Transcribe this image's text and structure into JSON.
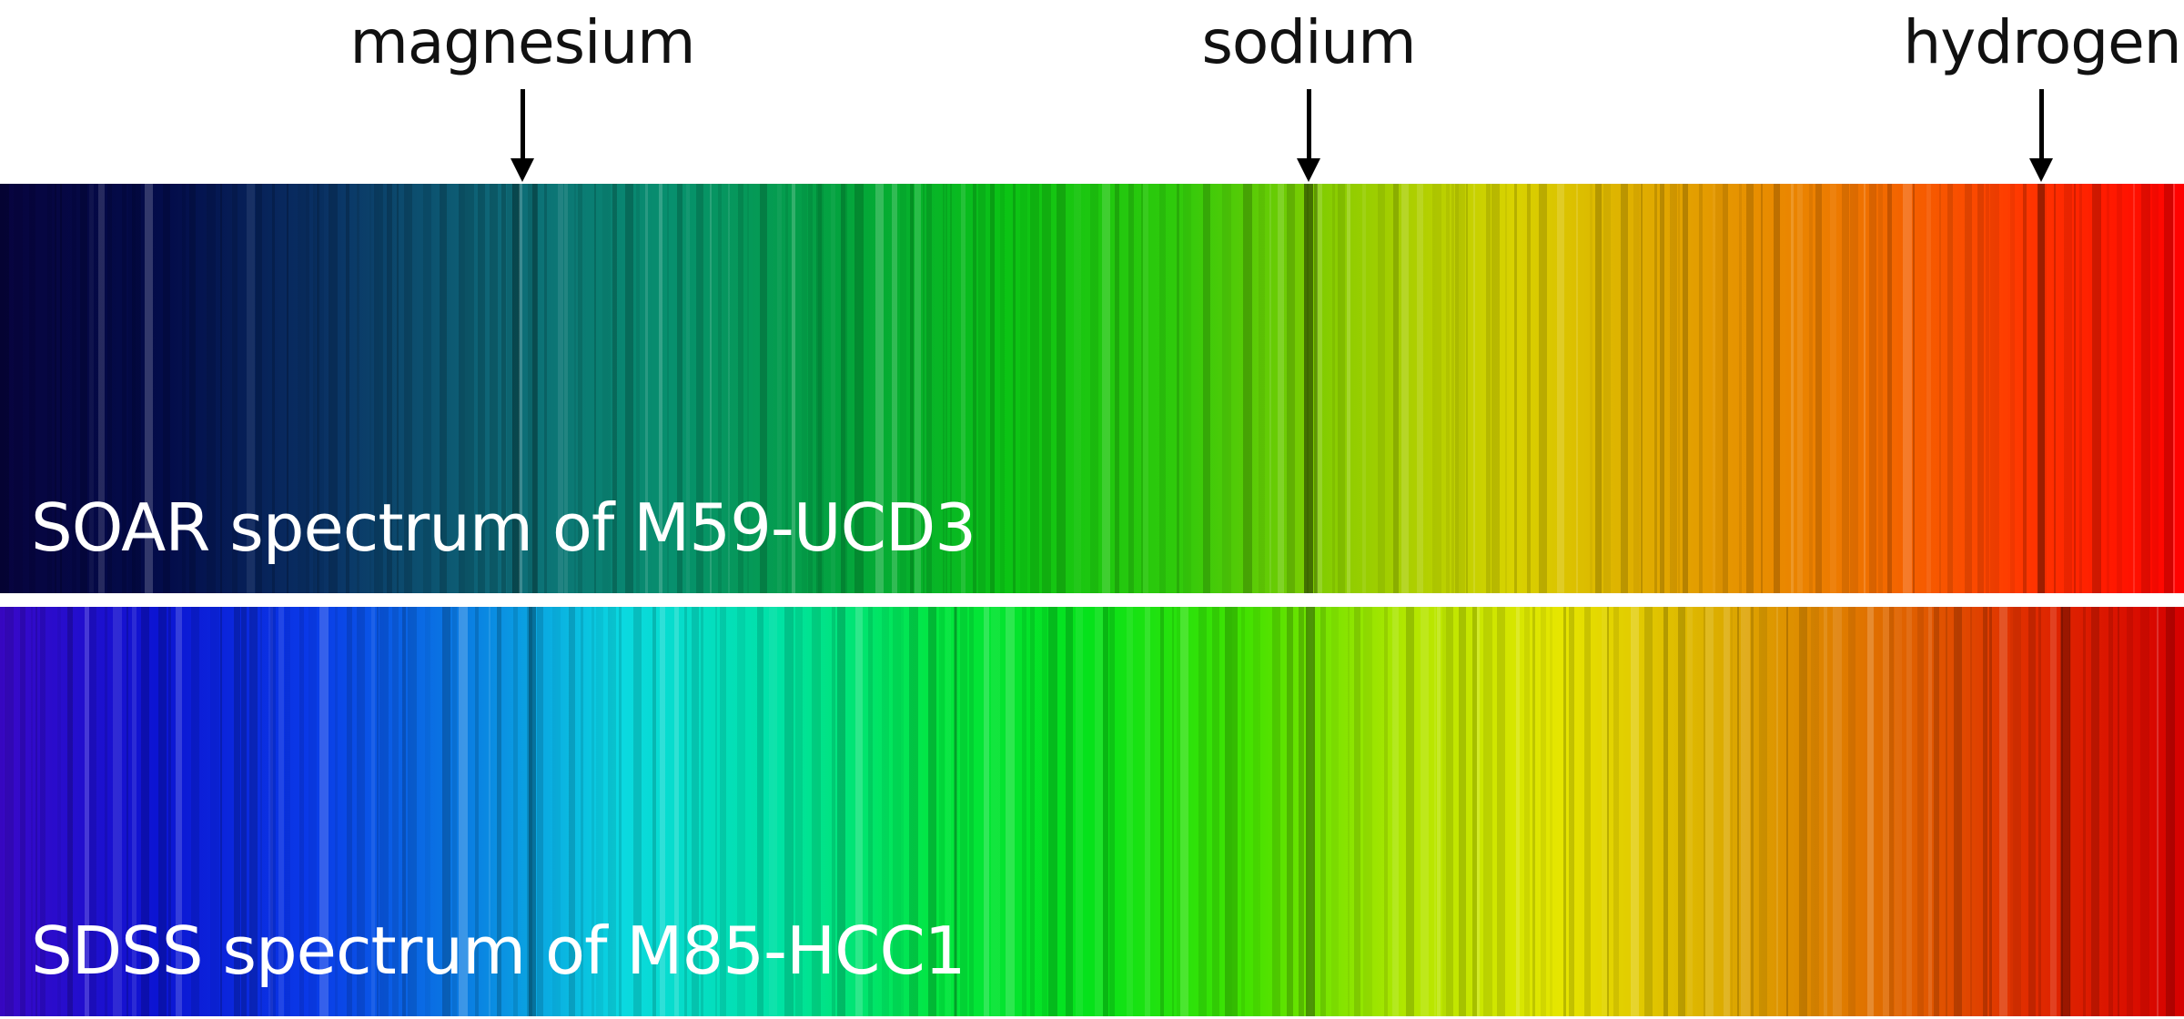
{
  "line_markers": [
    {
      "name": "magnesium",
      "label": "magnesium"
    },
    {
      "name": "sodium",
      "label": "sodium"
    },
    {
      "name": "hydrogen",
      "label": "hydrogen"
    }
  ],
  "spectra": [
    {
      "id": "soar",
      "label": "SOAR spectrum of M59-UCD3"
    },
    {
      "id": "sdss",
      "label": "SDSS spectrum of M85-HCC1"
    }
  ],
  "colors": {
    "soar_gradient": [
      "#07043f",
      "#030c4a",
      "#0a3566",
      "#0e6a78",
      "#07906e",
      "#03a33e",
      "#0bc414",
      "#2fca0b",
      "#8fcd00",
      "#d8d200",
      "#e2a200",
      "#ee7700",
      "#ff3a00",
      "#ff0000"
    ],
    "sdss_gradient": [
      "#3a08c8",
      "#0c14d2",
      "#0a3ae8",
      "#0a7ee2",
      "#0ad9e0",
      "#00e2a4",
      "#02e640",
      "#06e21a",
      "#44e200",
      "#b0e600",
      "#e6e600",
      "#dcae00",
      "#e07000",
      "#e02c00",
      "#d60000"
    ],
    "absorption_line": "#000000",
    "background": "#ffffff"
  }
}
